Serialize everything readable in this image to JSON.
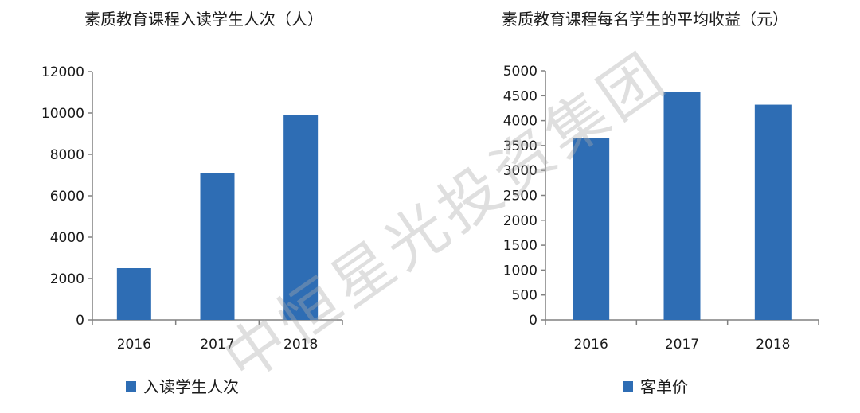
{
  "watermark": "中恒星光投资集团",
  "chart_data": [
    {
      "type": "bar",
      "title": "素质教育课程入读学生人次（人）",
      "categories": [
        "2016",
        "2017",
        "2018"
      ],
      "series": [
        {
          "name": "入读学生人次",
          "values": [
            2500,
            7100,
            9900
          ],
          "color": "#2e6db4"
        }
      ],
      "ylim": [
        0,
        12000
      ],
      "yticks": [
        0,
        2000,
        4000,
        6000,
        8000,
        10000,
        12000
      ],
      "legend": "bottom"
    },
    {
      "type": "bar",
      "title": "素质教育课程每名学生的平均收益（元）",
      "categories": [
        "2016",
        "2017",
        "2018"
      ],
      "series": [
        {
          "name": "客单价",
          "values": [
            3650,
            4570,
            4320
          ],
          "color": "#2e6db4"
        }
      ],
      "ylim": [
        0,
        5000
      ],
      "yticks": [
        0,
        500,
        1000,
        1500,
        2000,
        2500,
        3000,
        3500,
        4000,
        4500,
        5000
      ],
      "legend": "bottom"
    }
  ]
}
